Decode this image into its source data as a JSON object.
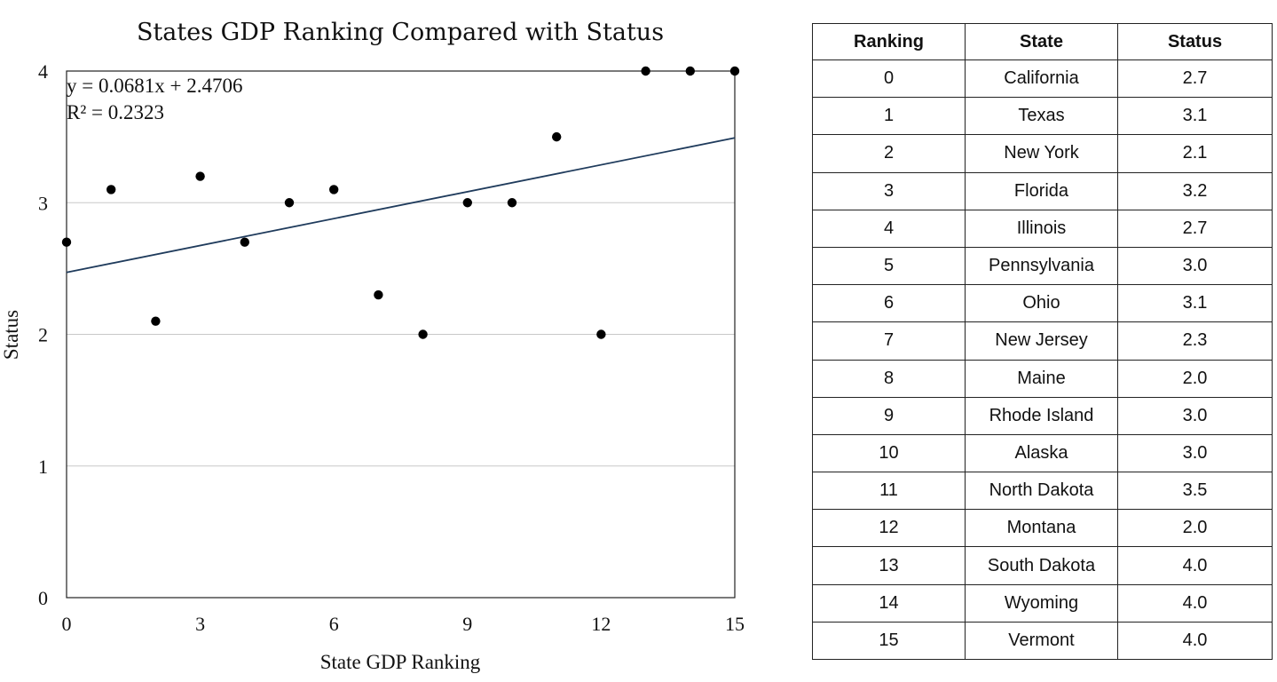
{
  "chart_data": {
    "type": "scatter",
    "title": "States GDP Ranking Compared with Status",
    "xlabel": "State GDP Ranking",
    "ylabel": "Status",
    "xlim": [
      0,
      15
    ],
    "ylim": [
      0,
      4
    ],
    "xticks": [
      0,
      3,
      6,
      9,
      12,
      15
    ],
    "yticks": [
      0,
      1,
      2,
      3,
      4
    ],
    "grid": "horizontal",
    "points": [
      {
        "x": 0,
        "y": 2.7
      },
      {
        "x": 1,
        "y": 3.1
      },
      {
        "x": 2,
        "y": 2.1
      },
      {
        "x": 3,
        "y": 3.2
      },
      {
        "x": 4,
        "y": 2.7
      },
      {
        "x": 5,
        "y": 3.0
      },
      {
        "x": 6,
        "y": 3.1
      },
      {
        "x": 7,
        "y": 2.3
      },
      {
        "x": 8,
        "y": 2.0
      },
      {
        "x": 9,
        "y": 3.0
      },
      {
        "x": 10,
        "y": 3.0
      },
      {
        "x": 11,
        "y": 3.5
      },
      {
        "x": 12,
        "y": 2.0
      },
      {
        "x": 13,
        "y": 4.0
      },
      {
        "x": 14,
        "y": 4.0
      },
      {
        "x": 15,
        "y": 4.0
      }
    ],
    "trendline": {
      "slope": 0.0681,
      "intercept": 2.4706,
      "equation": "y = 0.0681x + 2.4706",
      "r2": "R² = 0.2323"
    },
    "colors": {
      "points": "#000000",
      "trendline": "#1f3b5c",
      "grid": "#c8c8c8"
    }
  },
  "table": {
    "headers": [
      "Ranking",
      "State",
      "Status"
    ],
    "rows": [
      [
        "0",
        "California",
        "2.7"
      ],
      [
        "1",
        "Texas",
        "3.1"
      ],
      [
        "2",
        "New York",
        "2.1"
      ],
      [
        "3",
        "Florida",
        "3.2"
      ],
      [
        "4",
        "Illinois",
        "2.7"
      ],
      [
        "5",
        "Pennsylvania",
        "3.0"
      ],
      [
        "6",
        "Ohio",
        "3.1"
      ],
      [
        "7",
        "New Jersey",
        "2.3"
      ],
      [
        "8",
        "Maine",
        "2.0"
      ],
      [
        "9",
        "Rhode Island",
        "3.0"
      ],
      [
        "10",
        "Alaska",
        "3.0"
      ],
      [
        "11",
        "North Dakota",
        "3.5"
      ],
      [
        "12",
        "Montana",
        "2.0"
      ],
      [
        "13",
        "South Dakota",
        "4.0"
      ],
      [
        "14",
        "Wyoming",
        "4.0"
      ],
      [
        "15",
        "Vermont",
        "4.0"
      ]
    ]
  }
}
